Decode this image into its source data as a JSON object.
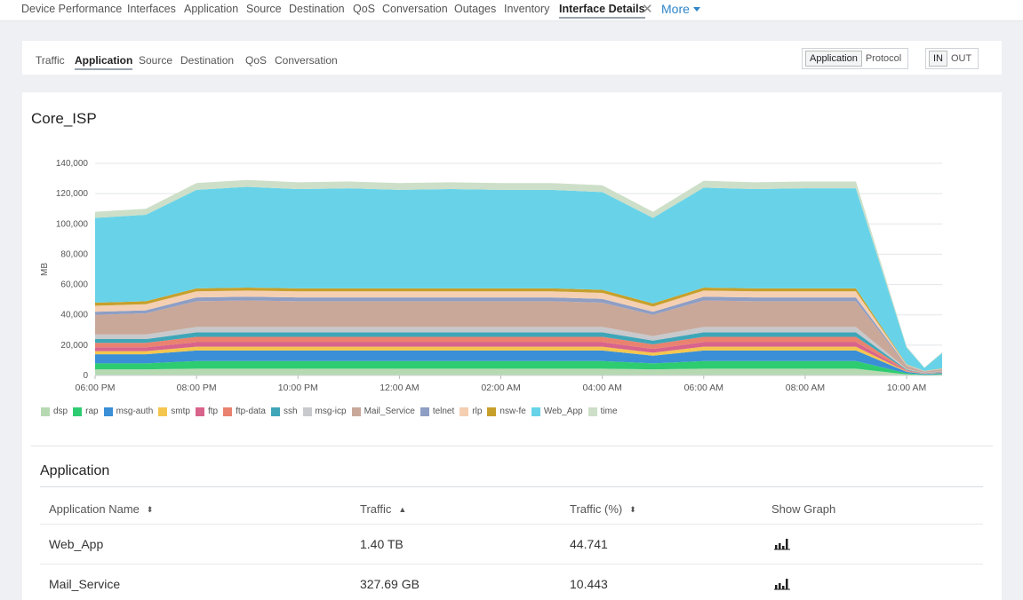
{
  "top_nav": {
    "items": [
      "Device Performance",
      "Interfaces",
      "Application",
      "Source",
      "Destination",
      "QoS",
      "Conversation",
      "Outages",
      "Inventory",
      "Interface Details"
    ],
    "active": "Interface Details",
    "more_label": "More"
  },
  "sub_nav": {
    "items": [
      "Traffic",
      "Application",
      "Source",
      "Destination",
      "QoS",
      "Conversation"
    ],
    "active": "Application",
    "view_toggle": [
      "Application",
      "Protocol"
    ],
    "view_selected": "Application",
    "direction_toggle": [
      "IN",
      "OUT"
    ],
    "direction_selected": "IN"
  },
  "card": {
    "title": "Core_ISP"
  },
  "chart_data": {
    "type": "area",
    "stacked": true,
    "ylabel": "MB",
    "ylim": [
      0,
      140000
    ],
    "y_ticks": [
      "0",
      "20,000",
      "40,000",
      "60,000",
      "80,000",
      "100,000",
      "120,000",
      "140,000"
    ],
    "x_tick_labels": [
      "06:00 PM",
      "08:00 PM",
      "10:00 PM",
      "12:00 AM",
      "02:00 AM",
      "04:00 AM",
      "06:00 AM",
      "08:00 AM",
      "10:00 AM"
    ],
    "x": [
      "06:00 PM",
      "07:00 PM",
      "08:00 PM",
      "09:00 PM",
      "10:00 PM",
      "11:00 PM",
      "12:00 AM",
      "01:00 AM",
      "02:00 AM",
      "03:00 AM",
      "04:00 AM",
      "05:00 AM",
      "06:00 AM",
      "07:00 AM",
      "08:00 AM",
      "09:00 AM",
      "10:00 AM",
      "10:15 AM",
      "10:30 AM"
    ],
    "series": [
      {
        "name": "dsp",
        "color": "#b7d9b1",
        "values": [
          4000,
          4000,
          4500,
          4500,
          4500,
          4500,
          4500,
          4500,
          4500,
          4500,
          4500,
          4000,
          4500,
          4500,
          4500,
          4500,
          700,
          300,
          500
        ]
      },
      {
        "name": "rap",
        "color": "#2ecc71",
        "values": [
          4000,
          4000,
          5000,
          5000,
          5000,
          5000,
          5000,
          5000,
          5000,
          5000,
          5000,
          4000,
          5000,
          5000,
          5000,
          5000,
          800,
          300,
          500
        ]
      },
      {
        "name": "msg-auth",
        "color": "#3a8fd6",
        "values": [
          6000,
          6000,
          7000,
          7000,
          7000,
          7000,
          7000,
          7000,
          7000,
          7000,
          7000,
          5000,
          7000,
          7000,
          7000,
          7000,
          900,
          400,
          600
        ]
      },
      {
        "name": "smtp",
        "color": "#f4c64e",
        "values": [
          2000,
          2000,
          2500,
          2500,
          2500,
          2500,
          2500,
          2500,
          2500,
          2500,
          2500,
          2000,
          2500,
          2500,
          2500,
          2500,
          300,
          150,
          200
        ]
      },
      {
        "name": "ftp",
        "color": "#d8648c",
        "values": [
          2500,
          2500,
          3000,
          3000,
          3000,
          3000,
          3000,
          3000,
          3000,
          3000,
          3000,
          2500,
          3000,
          3000,
          3000,
          3000,
          400,
          150,
          250
        ]
      },
      {
        "name": "ftp-data",
        "color": "#e9826f",
        "values": [
          3000,
          3000,
          3500,
          3500,
          3500,
          3500,
          3500,
          3500,
          3500,
          3500,
          3500,
          3000,
          3500,
          3500,
          3500,
          3500,
          400,
          150,
          250
        ]
      },
      {
        "name": "ssh",
        "color": "#3fa6b8",
        "values": [
          2500,
          2500,
          3000,
          3000,
          3000,
          3000,
          3000,
          3000,
          3000,
          3000,
          3000,
          2500,
          3000,
          3000,
          3000,
          3000,
          400,
          150,
          250
        ]
      },
      {
        "name": "msg-icp",
        "color": "#c7c9cc",
        "values": [
          3000,
          3000,
          3500,
          3500,
          3500,
          3500,
          3500,
          3500,
          3500,
          3500,
          3500,
          3000,
          3500,
          3500,
          3500,
          3500,
          400,
          150,
          250
        ]
      },
      {
        "name": "Mail_Service",
        "color": "#c9a89a",
        "values": [
          13000,
          14000,
          17000,
          17500,
          17000,
          17000,
          17000,
          17000,
          17000,
          17000,
          16000,
          14000,
          17500,
          17000,
          17000,
          17000,
          2000,
          800,
          1200
        ]
      },
      {
        "name": "telnet",
        "color": "#8e9ec4",
        "values": [
          2000,
          2000,
          2500,
          2500,
          2500,
          2500,
          2500,
          2500,
          2500,
          2500,
          2500,
          2000,
          2500,
          2500,
          2500,
          2500,
          300,
          150,
          200
        ]
      },
      {
        "name": "rlp",
        "color": "#f5cfb2",
        "values": [
          4000,
          4000,
          4000,
          4000,
          4000,
          4000,
          4000,
          4000,
          4000,
          4000,
          4000,
          3500,
          4000,
          4000,
          4000,
          4000,
          500,
          200,
          300
        ]
      },
      {
        "name": "nsw-fe",
        "color": "#c7a02c",
        "values": [
          2000,
          2000,
          2000,
          2000,
          2000,
          2000,
          2000,
          2000,
          2000,
          2000,
          2000,
          2000,
          2000,
          2000,
          2000,
          2000,
          300,
          100,
          200
        ]
      },
      {
        "name": "Web_App",
        "color": "#68d3e8",
        "values": [
          56000,
          57000,
          65000,
          66500,
          65500,
          66000,
          65000,
          65500,
          65000,
          65000,
          64500,
          56500,
          66000,
          65500,
          66000,
          66000,
          11000,
          2000,
          10000
        ]
      },
      {
        "name": "time",
        "color": "#cddfc8",
        "values": [
          4000,
          4000,
          4500,
          4500,
          4500,
          4500,
          4500,
          4500,
          4500,
          4500,
          4500,
          4000,
          4500,
          4500,
          4500,
          4500,
          800,
          300,
          600
        ]
      }
    ]
  },
  "table": {
    "title": "Application",
    "columns": [
      "Application Name",
      "Traffic",
      "Traffic (%)",
      "Show Graph"
    ],
    "rows": [
      {
        "name": "Web_App",
        "traffic": "1.40 TB",
        "percent": "44.741"
      },
      {
        "name": "Mail_Service",
        "traffic": "327.69 GB",
        "percent": "10.443"
      }
    ]
  }
}
